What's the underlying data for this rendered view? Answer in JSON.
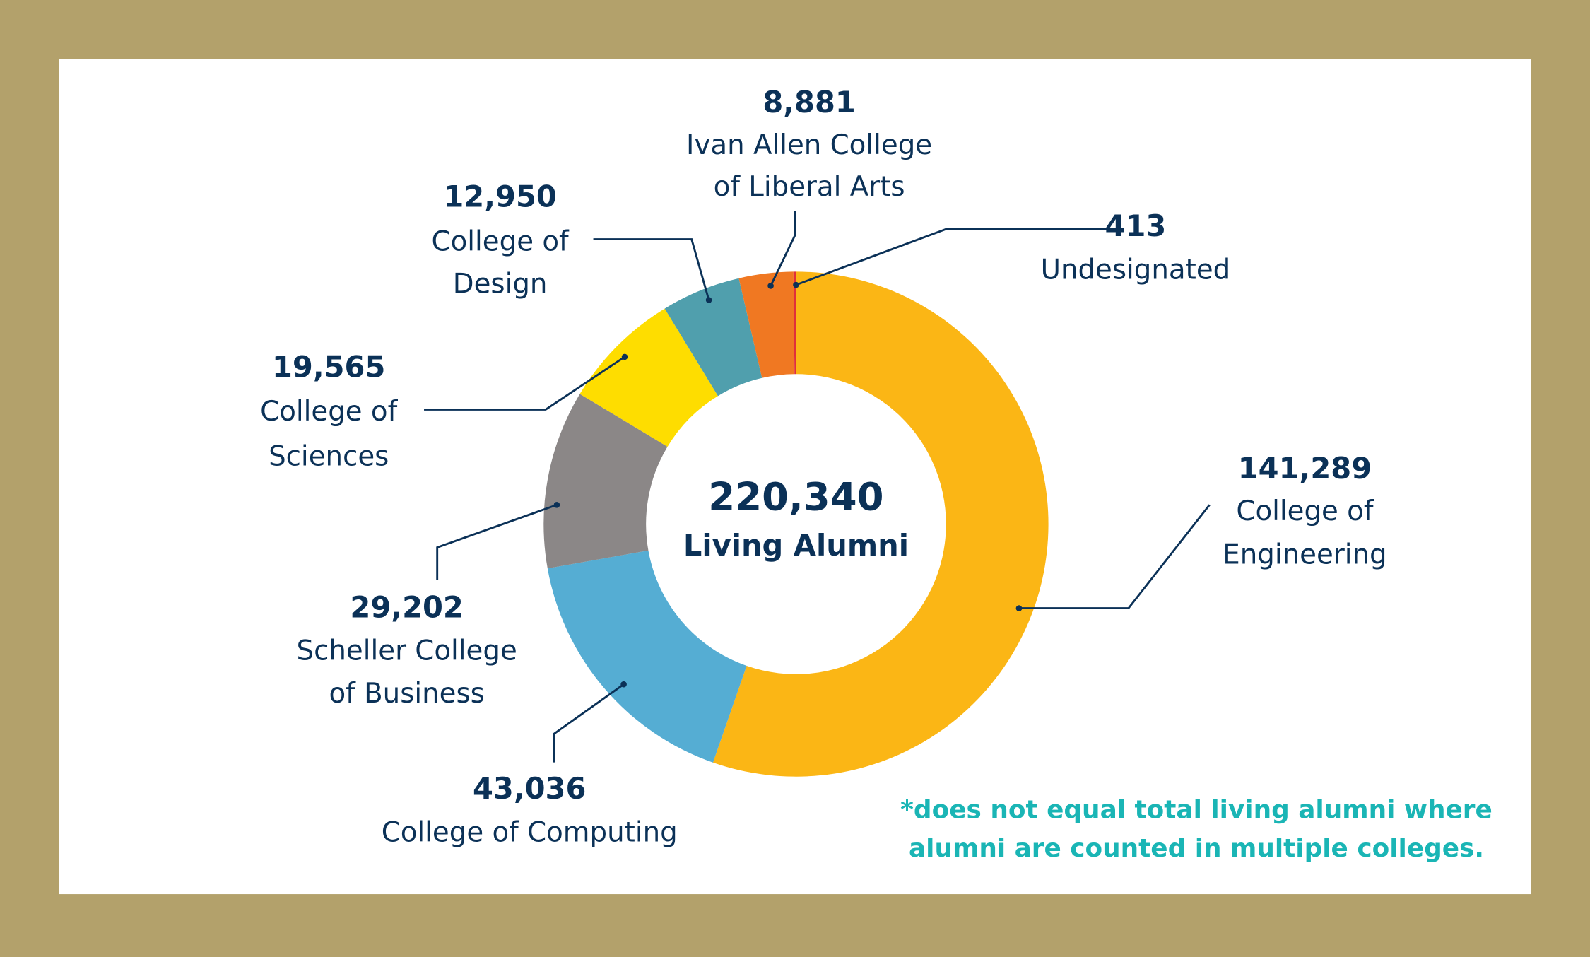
{
  "chart_data": {
    "type": "pie",
    "donut": true,
    "center": {
      "value": "220,340",
      "label": "Living Alumni"
    },
    "slices": [
      {
        "label": "College of Engineering",
        "value": 141289,
        "display": "141,289",
        "lines": [
          "College of",
          "Engineering"
        ],
        "color": "#FBB615"
      },
      {
        "label": "College of Computing",
        "value": 43036,
        "display": "43,036",
        "lines": [
          "College of Computing"
        ],
        "color": "#55ADD3"
      },
      {
        "label": "Scheller College of Business",
        "value": 29202,
        "display": "29,202",
        "lines": [
          "Scheller College",
          "of Business"
        ],
        "color": "#8B8787"
      },
      {
        "label": "College of Sciences",
        "value": 19565,
        "display": "19,565",
        "lines": [
          "College of",
          "Sciences"
        ],
        "color": "#FEDD00"
      },
      {
        "label": "College of Design",
        "value": 12950,
        "display": "12,950",
        "lines": [
          "College of",
          "Design"
        ],
        "color": "#509FAD"
      },
      {
        "label": "Ivan Allen College of Liberal Arts",
        "value": 8881,
        "display": "8,881",
        "lines": [
          "Ivan Allen College",
          "of Liberal Arts"
        ],
        "color": "#F07822"
      },
      {
        "label": "Undesignated",
        "value": 413,
        "display": "413",
        "lines": [
          "Undesignated"
        ],
        "color": "#E0303A"
      }
    ],
    "footnote": [
      "*does not equal total living alumni where",
      "alumni are counted in multiple colleges."
    ]
  },
  "colors": {
    "frame": "#B3A16B",
    "panel": "#FFFFFF",
    "text": "#0B3157",
    "footnote": "#1AB5B5"
  }
}
